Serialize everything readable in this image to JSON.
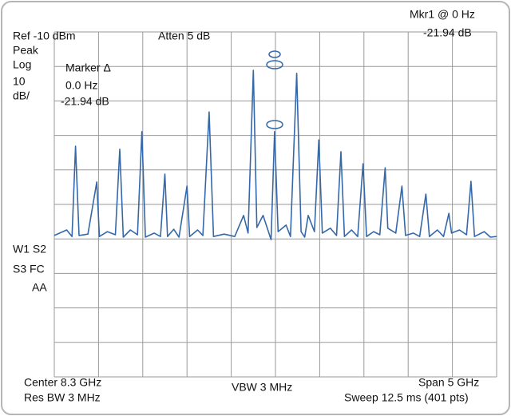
{
  "chart_data": {
    "type": "line",
    "annotations": {
      "marker_readout": "Mkr1 @ 0 Hz",
      "marker_level": "-21.94 dB",
      "ref": "Ref -10 dBm",
      "atten": "Atten 5 dB",
      "detector": "Peak",
      "scale": "Log",
      "scale_value": "10",
      "scale_unit": "dB/",
      "delta_title": "Marker Δ",
      "delta_freq": "0.0 Hz",
      "delta_level": "-21.94 dB",
      "flags1": "W1 S2",
      "flags2": "S3 FC",
      "flags3": "AA",
      "center": "Center 8.3 GHz",
      "rbw": "Res BW 3 MHz",
      "vbw": "VBW 3 MHz",
      "span": "Span 5 GHz",
      "sweep": "Sweep 12.5 ms (401 pts)"
    },
    "x": [
      5.8,
      5.94,
      6.0,
      6.04,
      6.08,
      6.18,
      6.28,
      6.31,
      6.4,
      6.49,
      6.54,
      6.58,
      6.66,
      6.74,
      6.79,
      6.83,
      6.93,
      7.0,
      7.05,
      7.08,
      7.15,
      7.21,
      7.3,
      7.33,
      7.42,
      7.48,
      7.55,
      7.6,
      7.72,
      7.84,
      7.94,
      7.99,
      8.05,
      8.09,
      8.16,
      8.25,
      8.29,
      8.33,
      8.42,
      8.47,
      8.54,
      8.59,
      8.63,
      8.67,
      8.74,
      8.79,
      8.83,
      8.92,
      8.99,
      9.04,
      9.08,
      9.16,
      9.23,
      9.29,
      9.33,
      9.41,
      9.48,
      9.54,
      9.57,
      9.66,
      9.73,
      9.77,
      9.86,
      9.93,
      10.0,
      10.04,
      10.13,
      10.2,
      10.26,
      10.29,
      10.38,
      10.46,
      10.51,
      10.55,
      10.66,
      10.73,
      10.8
    ],
    "series": [
      {
        "color": "#3568a8",
        "values": [
          -69.0,
          -67.4,
          -69.3,
          -43.1,
          -69.0,
          -68.6,
          -53.5,
          -69.3,
          -67.9,
          -68.8,
          -44.0,
          -69.5,
          -67.4,
          -68.8,
          -38.9,
          -69.5,
          -68.3,
          -69.3,
          -51.2,
          -69.3,
          -67.2,
          -69.5,
          -54.7,
          -69.3,
          -67.4,
          -69.0,
          -33.2,
          -69.3,
          -68.6,
          -69.3,
          -63.2,
          -68.3,
          -21.1,
          -66.7,
          -63.2,
          -70.2,
          -38.9,
          -67.9,
          -66.0,
          -69.3,
          -22.0,
          -67.9,
          -69.5,
          -63.2,
          -67.9,
          -41.3,
          -68.3,
          -66.9,
          -69.0,
          -44.7,
          -69.3,
          -67.4,
          -69.3,
          -48.2,
          -69.3,
          -67.9,
          -68.8,
          -49.4,
          -66.9,
          -68.3,
          -54.7,
          -69.0,
          -68.3,
          -69.3,
          -57.0,
          -69.3,
          -67.4,
          -69.3,
          -62.6,
          -68.3,
          -67.4,
          -68.8,
          -53.3,
          -69.3,
          -67.9,
          -69.5,
          -69.3
        ]
      }
    ],
    "xlim": [
      5.8,
      10.8
    ],
    "xticks": [
      5.8,
      6.3,
      6.8,
      7.3,
      7.8,
      8.3,
      8.8,
      9.3,
      9.8,
      10.3,
      10.8
    ],
    "ylim": [
      -110,
      -10
    ],
    "yticks": [
      -110,
      -100,
      -90,
      -80,
      -70,
      -60,
      -50,
      -40,
      -30,
      -20,
      -10
    ],
    "grid": true
  }
}
